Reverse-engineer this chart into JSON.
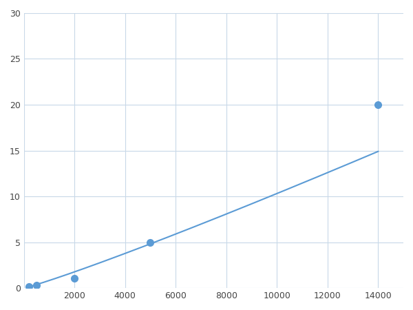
{
  "x_data": [
    188,
    500,
    2000,
    5000,
    14000
  ],
  "y_data": [
    0.2,
    0.3,
    1.1,
    5.0,
    20.0
  ],
  "line_color": "#5b9bd5",
  "marker_color": "#5b9bd5",
  "marker_size": 7,
  "line_width": 1.5,
  "xlim": [
    0,
    15000
  ],
  "ylim": [
    0,
    30
  ],
  "xticks": [
    0,
    2000,
    4000,
    6000,
    8000,
    10000,
    12000,
    14000
  ],
  "yticks": [
    0,
    5,
    10,
    15,
    20,
    25,
    30
  ],
  "xtick_labels": [
    "",
    "2000",
    "4000",
    "6000",
    "8000",
    "10000",
    "12000",
    "14000"
  ],
  "ytick_labels": [
    "0",
    "5",
    "10",
    "15",
    "20",
    "25",
    "30"
  ],
  "grid_color": "#c8d8e8",
  "grid_linewidth": 0.8,
  "background_color": "#ffffff",
  "figsize": [
    6.0,
    4.5
  ],
  "dpi": 100
}
